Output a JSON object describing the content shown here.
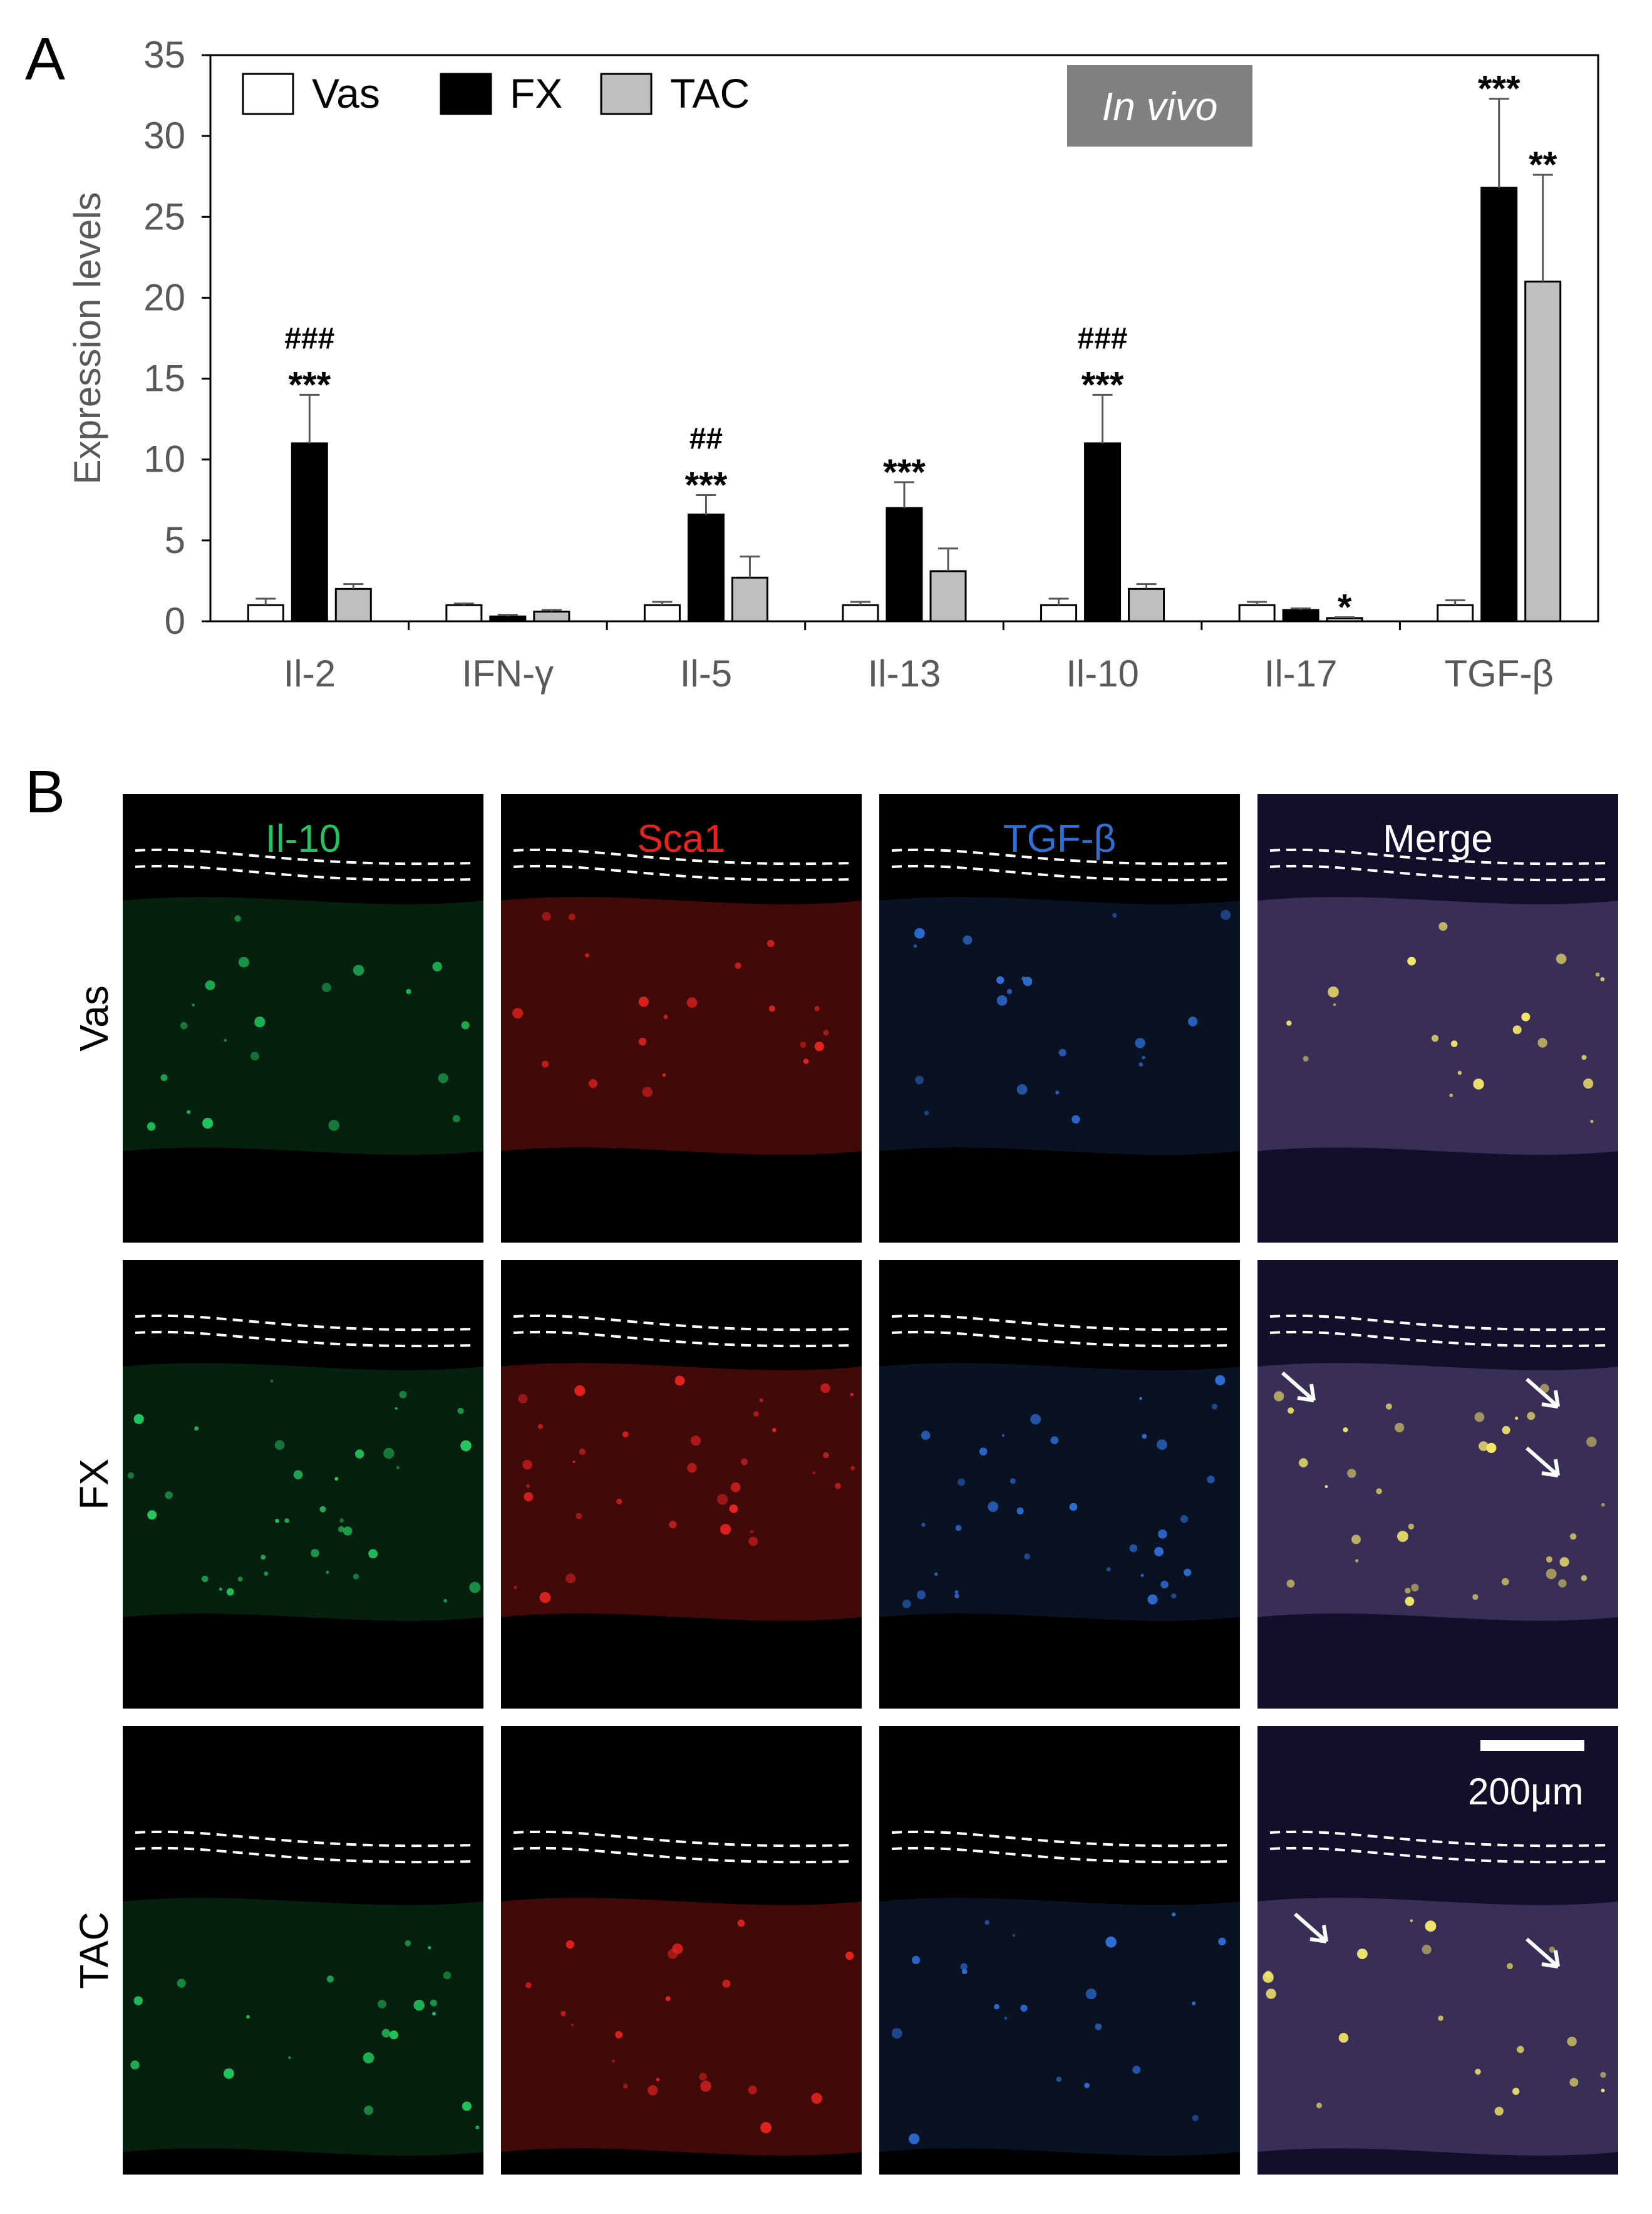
{
  "panel_a": {
    "letter": "A"
  },
  "panel_b": {
    "letter": "B"
  },
  "chart_data": {
    "type": "bar",
    "title": "",
    "annotation": "In vivo",
    "xlabel": "",
    "ylabel": "Expression levels",
    "ylim": [
      0,
      35
    ],
    "yticks": [
      0,
      5,
      10,
      15,
      20,
      25,
      30,
      35
    ],
    "grid": false,
    "legend": "top-left",
    "categories": [
      "Il-2",
      "IFN-γ",
      "Il-5",
      "Il-13",
      "Il-10",
      "Il-17",
      "TGF-β"
    ],
    "series": [
      {
        "name": "Vas",
        "color": "#ffffff",
        "values": [
          1.0,
          1.0,
          1.0,
          1.0,
          1.0,
          1.0,
          1.0
        ],
        "errors": [
          0.4,
          0.1,
          0.2,
          0.2,
          0.4,
          0.2,
          0.3
        ],
        "sig": [
          "",
          "",
          "",
          "",
          "",
          "",
          ""
        ]
      },
      {
        "name": "FX",
        "color": "#000000",
        "values": [
          11.0,
          0.3,
          6.6,
          7.0,
          11.0,
          0.7,
          26.8
        ],
        "errors": [
          3.0,
          0.1,
          1.2,
          1.6,
          3.0,
          0.1,
          5.5
        ],
        "sig": [
          "###\n***",
          "",
          "##\n***",
          "***",
          "###\n***",
          "",
          "***"
        ]
      },
      {
        "name": "TAC",
        "color": "#bfbfbf",
        "values": [
          2.0,
          0.6,
          2.7,
          3.1,
          2.0,
          0.2,
          21.0
        ],
        "errors": [
          0.3,
          0.1,
          1.3,
          1.4,
          0.3,
          0.05,
          6.6
        ],
        "sig": [
          "",
          "",
          "",
          "",
          "",
          "*",
          "**"
        ]
      }
    ]
  },
  "micrographs": {
    "channels": [
      {
        "name": "Il-10",
        "color": "#22c55e"
      },
      {
        "name": "Sca1",
        "color": "#e8231f"
      },
      {
        "name": "TGF-β",
        "color": "#2f6fd8"
      },
      {
        "name": "Merge",
        "color": "#ffffff"
      }
    ],
    "rows": [
      "Vas",
      "FX",
      "TAC"
    ],
    "scale_bar": "200μm"
  }
}
